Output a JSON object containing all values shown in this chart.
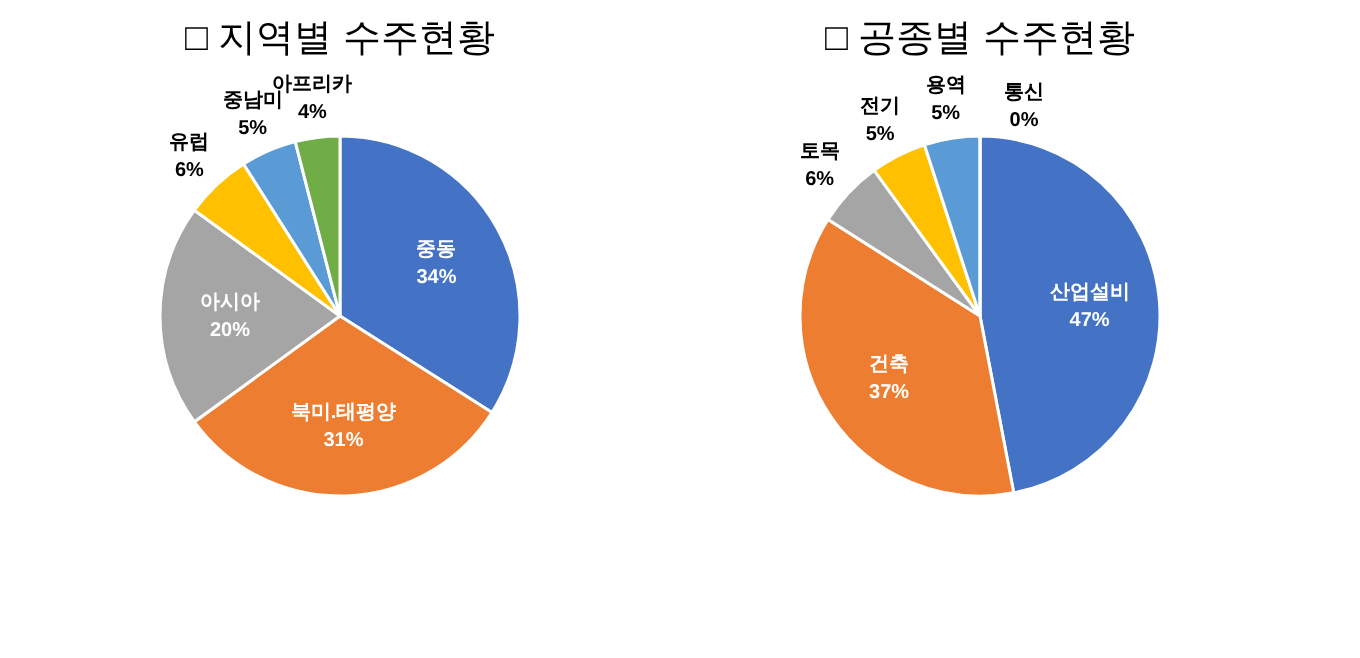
{
  "chart_data": [
    {
      "type": "pie",
      "title": "□ 지역별 수주현황",
      "categories": [
        "중동",
        "북미.태평양",
        "아시아",
        "유럽",
        "중남미",
        "아프리카"
      ],
      "values": [
        34,
        31,
        20,
        6,
        5,
        4
      ],
      "value_labels": [
        "34%",
        "31%",
        "20%",
        "6%",
        "5%",
        "4%"
      ],
      "colors": [
        "#4472c4",
        "#ed7d31",
        "#a5a5a5",
        "#ffc000",
        "#5b9bd5",
        "#70ad47"
      ]
    },
    {
      "type": "pie",
      "title": "□ 공종별 수주현황",
      "categories": [
        "산업설비",
        "건축",
        "토목",
        "전기",
        "용역",
        "통신"
      ],
      "values": [
        47,
        37,
        6,
        5,
        5,
        0
      ],
      "value_labels": [
        "47%",
        "37%",
        "6%",
        "5%",
        "5%",
        "0%"
      ],
      "colors": [
        "#4472c4",
        "#ed7d31",
        "#a5a5a5",
        "#ffc000",
        "#5b9bd5",
        "#70ad47"
      ]
    }
  ]
}
